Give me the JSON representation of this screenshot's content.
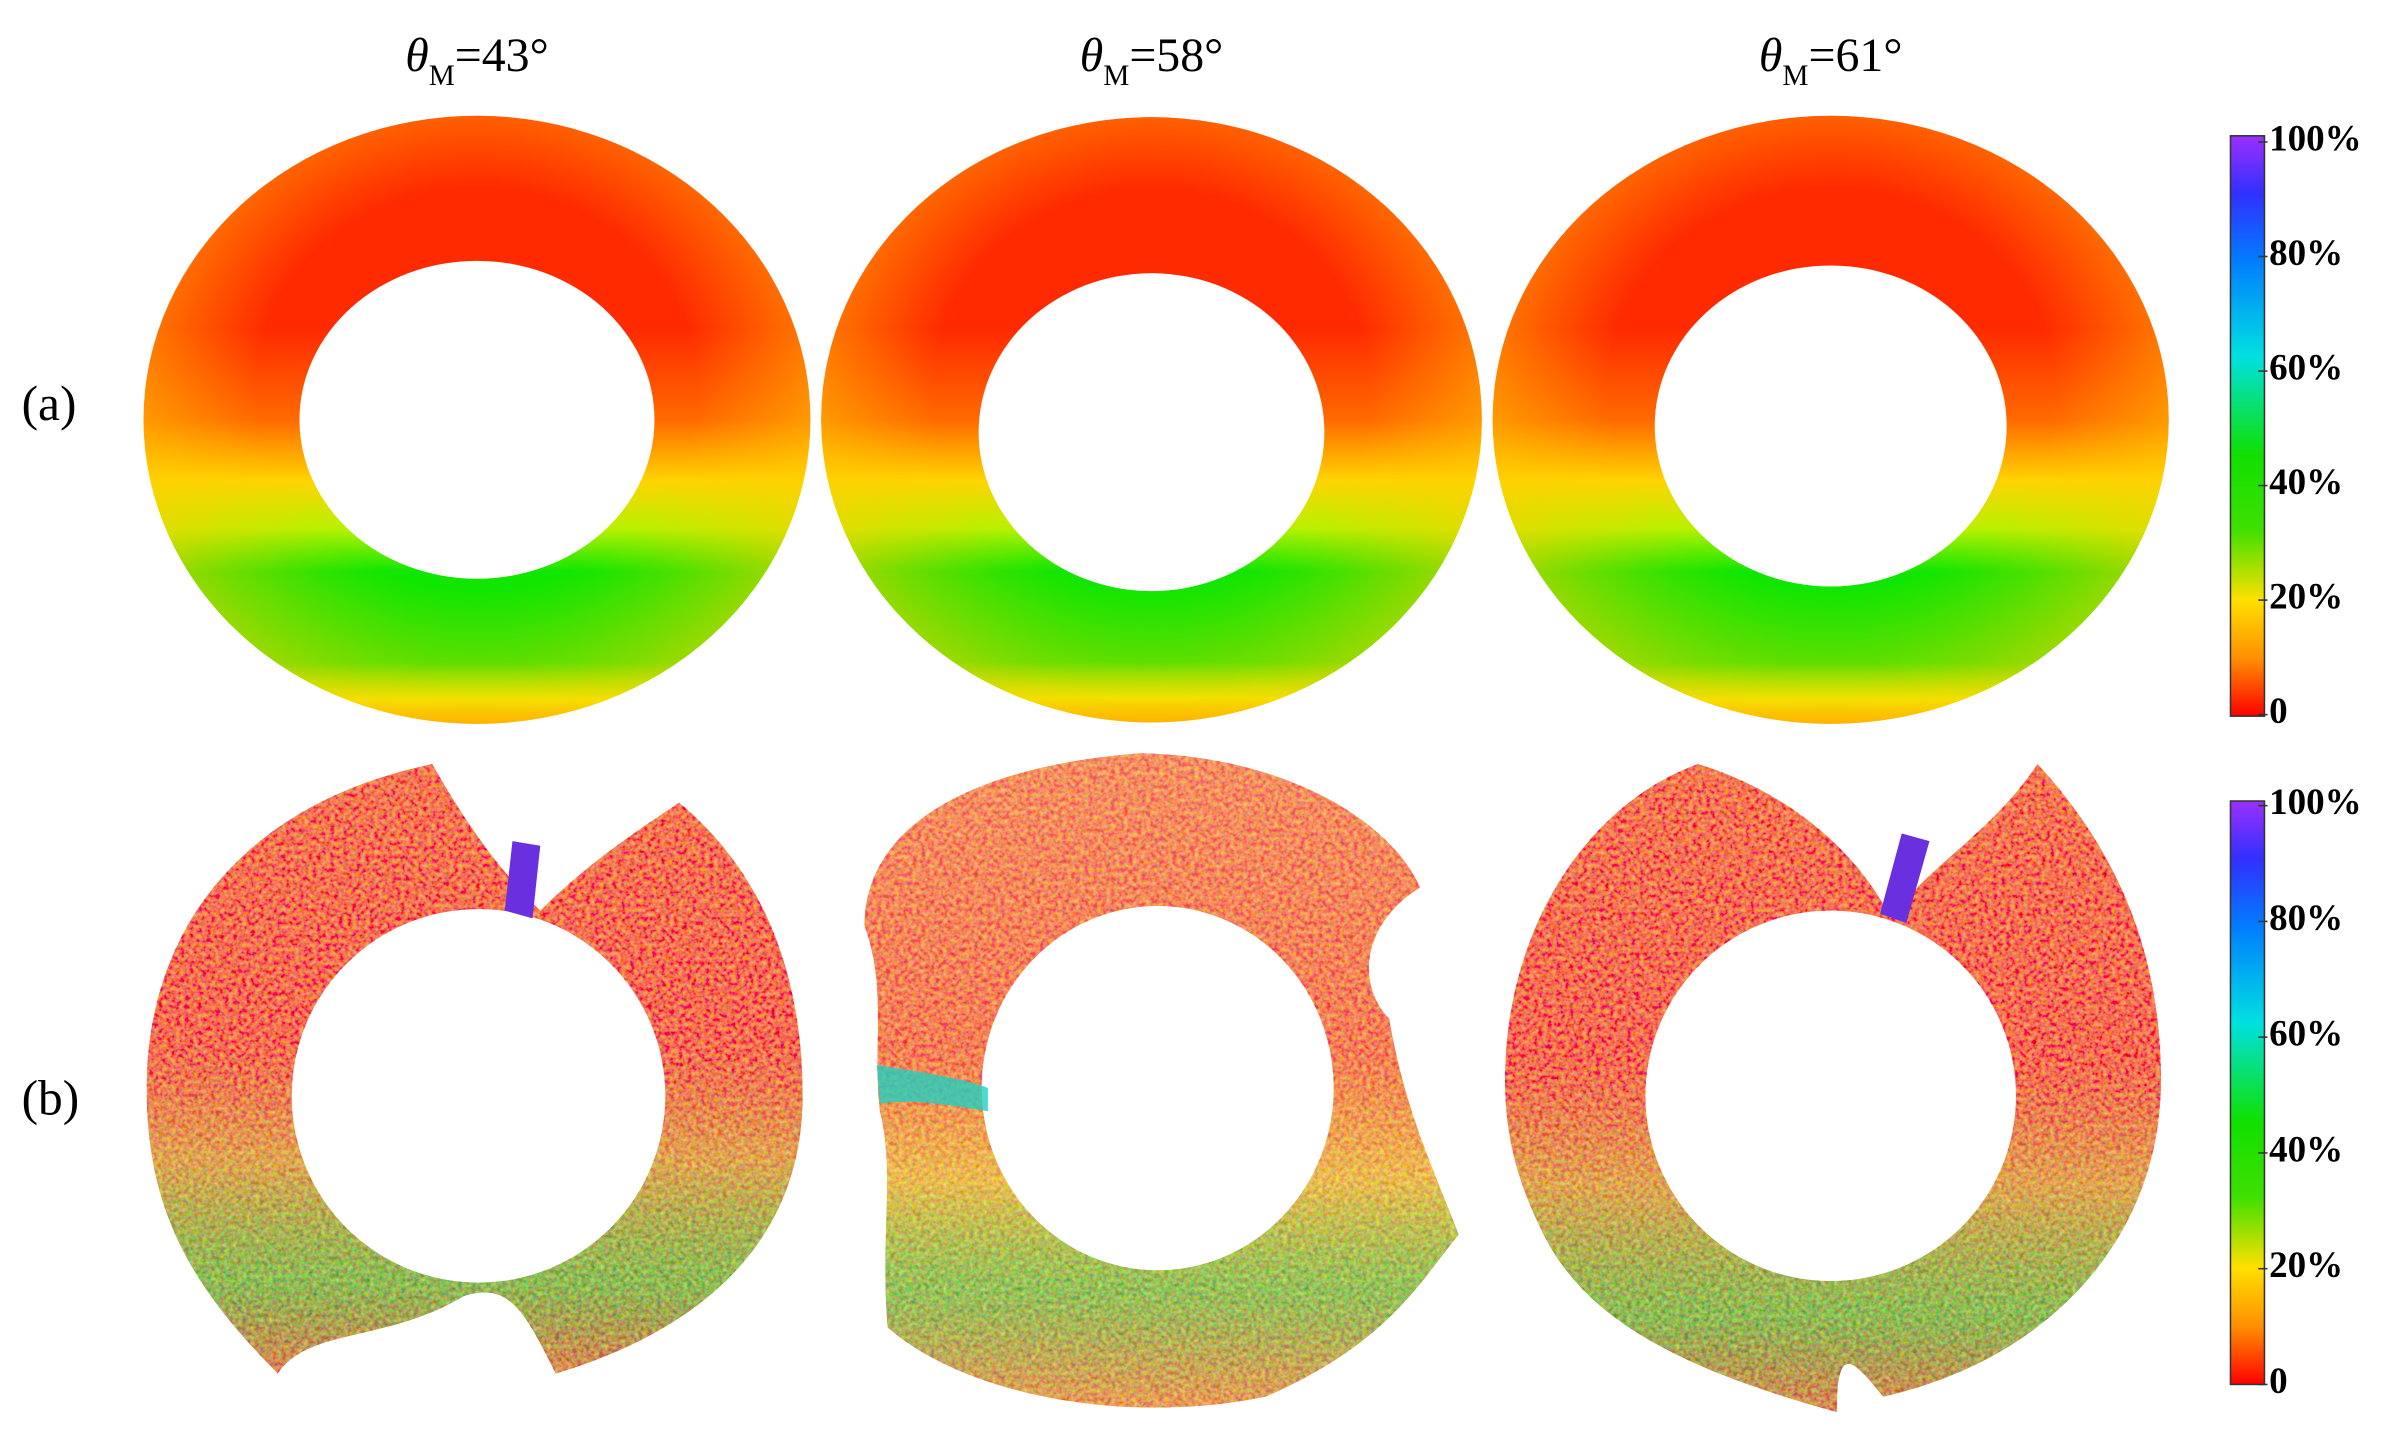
{
  "columns": [
    {
      "symbol": "θ",
      "subscript": "M",
      "text": "=43°"
    },
    {
      "symbol": "θ",
      "subscript": "M",
      "text": "=58°"
    },
    {
      "symbol": "θ",
      "subscript": "M",
      "text": "=61°"
    }
  ],
  "rows": [
    "(a)",
    "(b)"
  ],
  "colorbars": [
    {
      "ticks": [
        "100%",
        "80%",
        "60%",
        "40%",
        "20%",
        "0"
      ]
    },
    {
      "ticks": [
        "100%",
        "80%",
        "60%",
        "40%",
        "20%",
        "0"
      ]
    }
  ]
}
